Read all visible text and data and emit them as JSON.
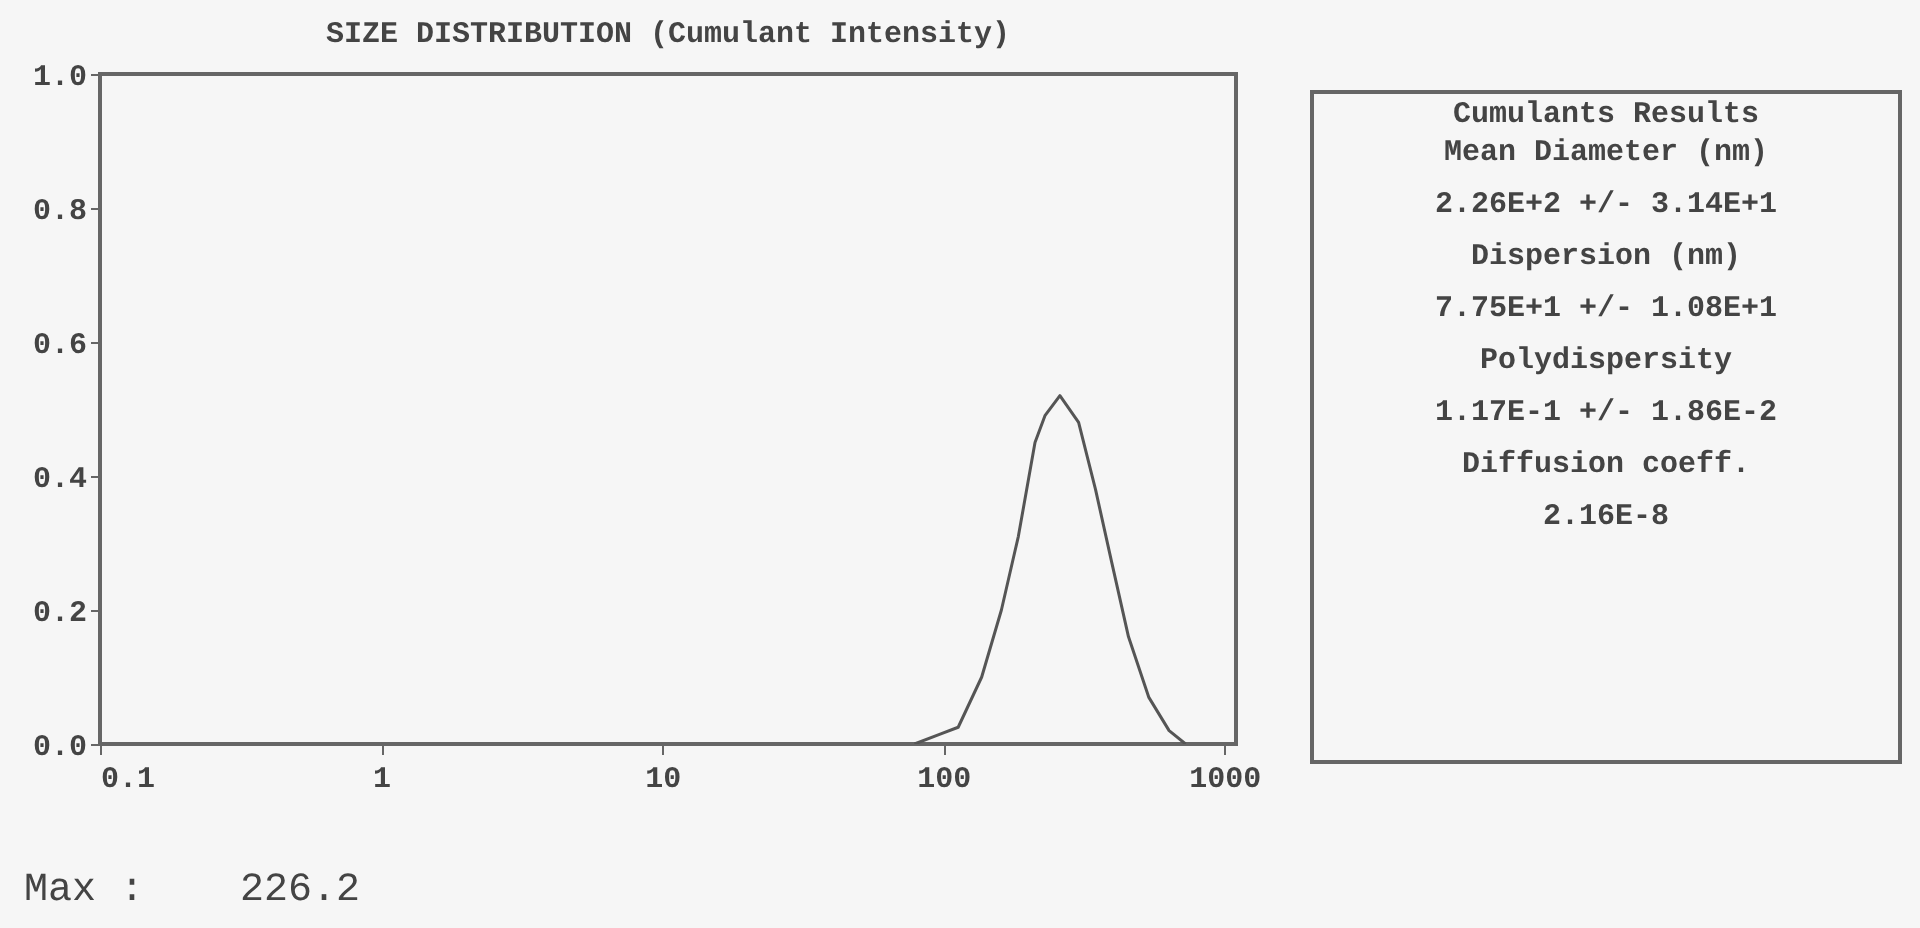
{
  "chart_data": {
    "type": "line",
    "title": "SIZE DISTRIBUTION (Cumulant Intensity)",
    "color": "#555555",
    "x": [
      79,
      98,
      113,
      137,
      161,
      185,
      212,
      230,
      260,
      303,
      348,
      398,
      456,
      538,
      636,
      728
    ],
    "values": [
      0,
      0.015,
      0.025,
      0.1,
      0.2,
      0.31,
      0.45,
      0.49,
      0.52,
      0.48,
      0.38,
      0.27,
      0.16,
      0.07,
      0.02,
      0
    ],
    "log": "x",
    "xlim": [
      0.1,
      1100
    ],
    "xticks": [
      0.1,
      1,
      10,
      100,
      1000
    ],
    "ylim": [
      0,
      1
    ],
    "yticks": [
      {
        "value": 0,
        "label": "0.0"
      },
      {
        "value": 0.2,
        "label": "0.2"
      },
      {
        "value": 0.4,
        "label": "0.4"
      },
      {
        "value": 0.6,
        "label": "0.6"
      },
      {
        "value": 0.8,
        "label": "0.8"
      },
      {
        "value": 1,
        "label": "1.0"
      }
    ],
    "grid": false,
    "marker": "none",
    "annotations": [
      "Cumulants Results",
      "Mean Diameter (nm)",
      "2.26E+2 +/- 3.14E+1",
      "Dispersion (nm)",
      "7.75E+1 +/- 1.08E+1",
      "Polydispersity",
      "1.17E-1 +/- 1.86E-2",
      "Diffusion coeff.",
      "2.16E-8",
      "Max :    226.2"
    ]
  }
}
